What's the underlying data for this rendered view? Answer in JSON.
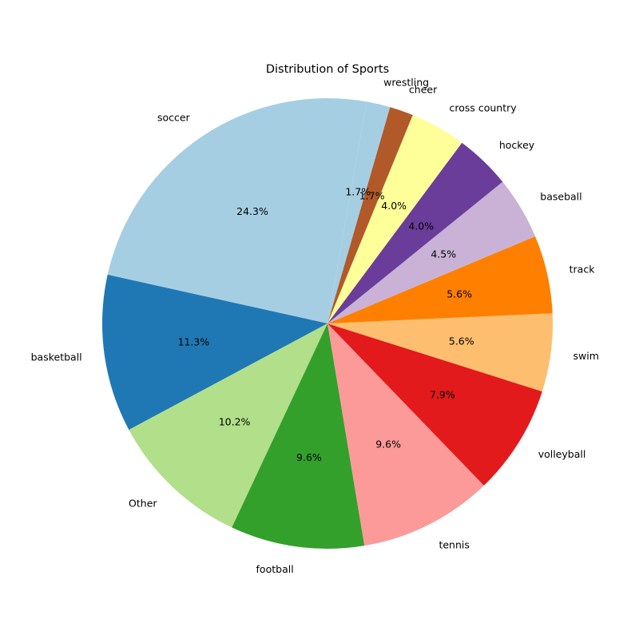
{
  "chart_data": {
    "type": "pie",
    "title": "Distribution of Sports",
    "categories": [
      "soccer",
      "basketball",
      "Other",
      "football",
      "tennis",
      "volleyball",
      "swim",
      "track",
      "baseball",
      "hockey",
      "cross country",
      "cheer",
      "wrestling"
    ],
    "values": [
      24.3,
      11.3,
      10.2,
      9.6,
      9.6,
      7.9,
      5.6,
      5.6,
      4.5,
      4.0,
      4.0,
      1.7,
      1.7
    ],
    "value_labels": [
      "24.3%",
      "11.3%",
      "10.2%",
      "9.6%",
      "9.6%",
      "7.9%",
      "5.6%",
      "5.6%",
      "4.5%",
      "4.0%",
      "4.0%",
      "1.7%",
      "1.7%"
    ],
    "colors": [
      "#a6cee3",
      "#1f78b4",
      "#b2df8a",
      "#33a02c",
      "#fb9a99",
      "#e31a1c",
      "#fdbf6f",
      "#ff7f00",
      "#cab2d6",
      "#6a3d9a",
      "#ffff99",
      "#b15928",
      "#a6cee3"
    ],
    "start_angle_deg": 80,
    "direction": "counterclockwise",
    "legend": "none"
  }
}
